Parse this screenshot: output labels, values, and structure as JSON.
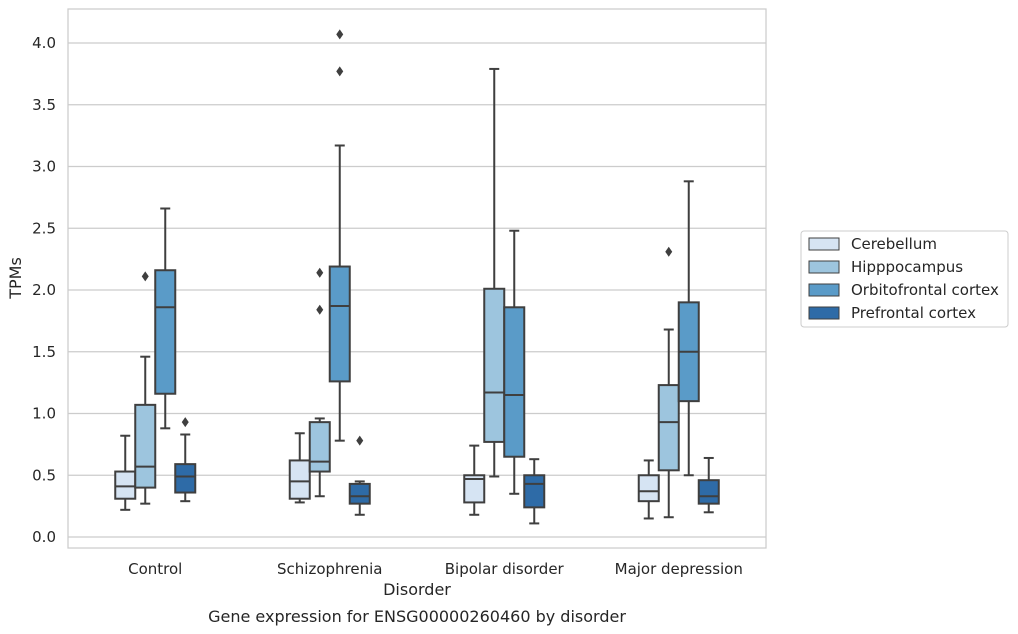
{
  "chart_data": {
    "type": "box",
    "xlabel": "Disorder",
    "ylabel": "TPMs",
    "caption": "Gene expression for ENSG00000260460 by disorder",
    "ylim": [
      -0.09,
      4.27
    ],
    "yticks": [
      "0.0",
      "0.5",
      "1.0",
      "1.5",
      "2.0",
      "2.5",
      "3.0",
      "3.5",
      "4.0"
    ],
    "grid": "horizontal",
    "legend_placement": "right",
    "categories": [
      "Control",
      "Schizophrenia",
      "Bipolar disorder",
      "Major depression"
    ],
    "series": [
      {
        "name": "Cerebellum",
        "color": "#d6e4f3",
        "boxes": [
          {
            "whislo": 0.22,
            "q1": 0.31,
            "med": 0.41,
            "q3": 0.53,
            "whishi": 0.82,
            "fliers": []
          },
          {
            "whislo": 0.28,
            "q1": 0.31,
            "med": 0.45,
            "q3": 0.62,
            "whishi": 0.84,
            "fliers": []
          },
          {
            "whislo": 0.18,
            "q1": 0.28,
            "med": 0.47,
            "q3": 0.5,
            "whishi": 0.74,
            "fliers": []
          },
          {
            "whislo": 0.15,
            "q1": 0.29,
            "med": 0.37,
            "q3": 0.5,
            "whishi": 0.62,
            "fliers": []
          }
        ]
      },
      {
        "name": "Hipppocampus",
        "color": "#9dc5de",
        "boxes": [
          {
            "whislo": 0.27,
            "q1": 0.4,
            "med": 0.57,
            "q3": 1.07,
            "whishi": 1.46,
            "fliers": [
              2.11
            ]
          },
          {
            "whislo": 0.33,
            "q1": 0.53,
            "med": 0.61,
            "q3": 0.93,
            "whishi": 0.96,
            "fliers": [
              1.84,
              2.14
            ]
          },
          {
            "whislo": 0.49,
            "q1": 0.77,
            "med": 1.17,
            "q3": 2.01,
            "whishi": 3.79,
            "fliers": []
          },
          {
            "whislo": 0.16,
            "q1": 0.54,
            "med": 0.93,
            "q3": 1.23,
            "whishi": 1.68,
            "fliers": [
              2.31
            ]
          }
        ]
      },
      {
        "name": "Orbitofrontal cortex",
        "color": "#5a9bc8",
        "boxes": [
          {
            "whislo": 0.88,
            "q1": 1.16,
            "med": 1.86,
            "q3": 2.16,
            "whishi": 2.66,
            "fliers": []
          },
          {
            "whislo": 0.78,
            "q1": 1.26,
            "med": 1.87,
            "q3": 2.19,
            "whishi": 3.17,
            "fliers": [
              3.77,
              4.07
            ]
          },
          {
            "whislo": 0.35,
            "q1": 0.65,
            "med": 1.15,
            "q3": 1.86,
            "whishi": 2.48,
            "fliers": []
          },
          {
            "whislo": 0.5,
            "q1": 1.1,
            "med": 1.5,
            "q3": 1.9,
            "whishi": 2.88,
            "fliers": []
          }
        ]
      },
      {
        "name": "Prefrontal cortex",
        "color": "#2e6ba7",
        "boxes": [
          {
            "whislo": 0.29,
            "q1": 0.36,
            "med": 0.49,
            "q3": 0.59,
            "whishi": 0.83,
            "fliers": [
              0.93
            ]
          },
          {
            "whislo": 0.18,
            "q1": 0.27,
            "med": 0.33,
            "q3": 0.43,
            "whishi": 0.45,
            "fliers": [
              0.78
            ]
          },
          {
            "whislo": 0.11,
            "q1": 0.24,
            "med": 0.43,
            "q3": 0.5,
            "whishi": 0.63,
            "fliers": []
          },
          {
            "whislo": 0.2,
            "q1": 0.27,
            "med": 0.33,
            "q3": 0.46,
            "whishi": 0.64,
            "fliers": []
          }
        ]
      }
    ]
  }
}
